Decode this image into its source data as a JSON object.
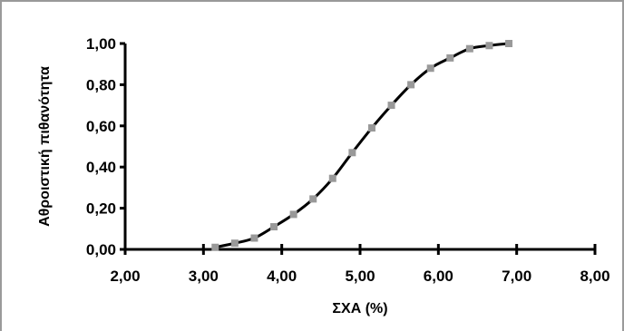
{
  "chart_data": {
    "type": "line",
    "title": "",
    "xlabel": "ΣΧΑ (%)",
    "ylabel": "Αθροιστική πιθανότητα",
    "xlim": [
      2.0,
      8.0
    ],
    "ylim": [
      0.0,
      1.0
    ],
    "x_ticks": [
      "2,00",
      "3,00",
      "4,00",
      "5,00",
      "6,00",
      "7,00",
      "8,00"
    ],
    "y_ticks": [
      "0,00",
      "0,20",
      "0,40",
      "0,60",
      "0,80",
      "1,00"
    ],
    "grid": false,
    "legend": "none",
    "series": [
      {
        "color": "#000000",
        "marker_color": "#999999",
        "x": [
          3.15,
          3.4,
          3.65,
          3.9,
          4.15,
          4.4,
          4.65,
          4.9,
          5.15,
          5.4,
          5.65,
          5.9,
          6.15,
          6.4,
          6.65,
          6.9
        ],
        "y": [
          0.01,
          0.03,
          0.055,
          0.11,
          0.17,
          0.245,
          0.345,
          0.47,
          0.59,
          0.7,
          0.8,
          0.88,
          0.93,
          0.975,
          0.99,
          1.0
        ]
      }
    ]
  }
}
